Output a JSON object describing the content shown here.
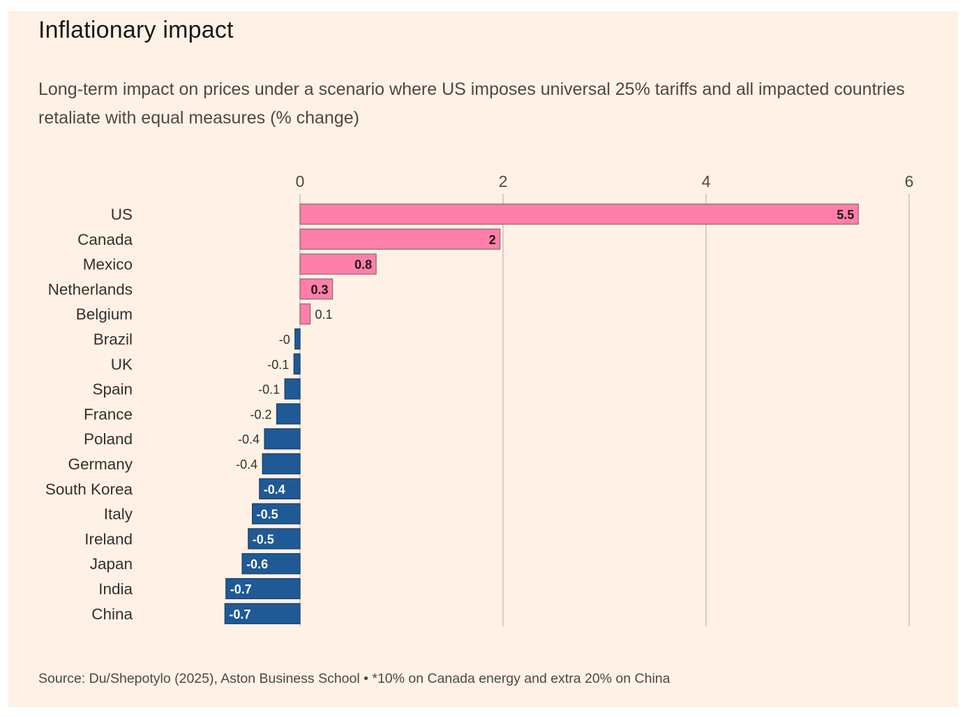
{
  "title": "Inflationary impact",
  "subtitle": "Long-term impact on prices under a scenario where US imposes universal 25% tariffs and all impacted countries retaliate with equal measures (% change)",
  "source": "Source: Du/Shepotylo (2025), Aston Business School • *10% on Canada energy and extra 20% on China",
  "colors": {
    "background": "#FFF1E5",
    "positive_bar": "#FF7FAA",
    "negative_bar": "#1F5A96",
    "gridline": "#c9c3be"
  },
  "chart_data": {
    "type": "bar",
    "orientation": "horizontal",
    "title": "Inflationary impact",
    "subtitle": "Long-term impact on prices under a scenario where US imposes universal 25% tariffs and all impacted countries retaliate with equal measures (% change)",
    "xlim": [
      0,
      6
    ],
    "xticks": [
      "0",
      "2",
      "4",
      "6"
    ],
    "xtick_values": [
      0,
      2,
      4,
      6
    ],
    "grid": true,
    "categories": [
      "US",
      "Canada",
      "Mexico",
      "Netherlands",
      "Belgium",
      "Brazil",
      "UK",
      "Spain",
      "France",
      "Poland",
      "Germany",
      "South Korea",
      "Italy",
      "Ireland",
      "Japan",
      "India",
      "China"
    ],
    "values": [
      5.5,
      1.97,
      0.75,
      0.32,
      0.1,
      -0.05,
      -0.06,
      -0.15,
      -0.23,
      -0.35,
      -0.37,
      -0.4,
      -0.47,
      -0.51,
      -0.57,
      -0.73,
      -0.74
    ],
    "value_labels": [
      "5.5",
      "2",
      "0.8",
      "0.3",
      "0.1",
      "-0",
      "-0.1",
      "-0.1",
      "-0.2",
      "-0.4",
      "-0.4",
      "-0.4",
      "-0.5",
      "-0.5",
      "-0.6",
      "-0.7",
      "-0.7"
    ]
  }
}
